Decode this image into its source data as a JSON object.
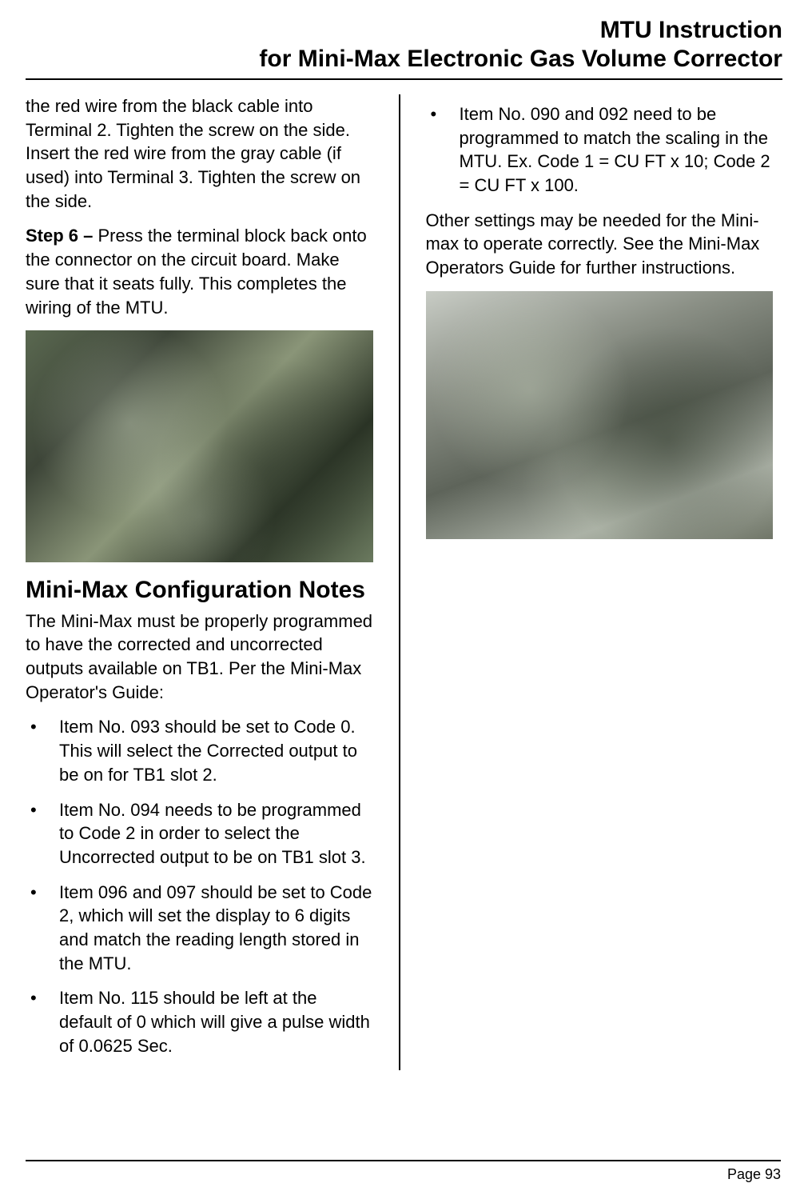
{
  "header": {
    "line1": "MTU Instruction",
    "line2": "for Mini-Max Electronic Gas Volume Corrector"
  },
  "left": {
    "para1": "the red wire from the black cable into Terminal 2. Tighten the screw on the side. Insert the red wire from the gray cable (if used) into Terminal 3. Tighten the screw on the side.",
    "step6_label": "Step 6 – ",
    "step6_text": "Press the terminal block back onto the connector on the circuit board. Make sure     that it seats fully. This completes the wiring of the MTU.",
    "heading": "Mini-Max Configuration Notes",
    "para2": "The Mini-Max must be properly programmed to have the corrected and uncorrected outputs available on TB1. Per the Mini-Max Operator's Guide:",
    "bullets": [
      "Item No. 093 should be set to Code 0. This will select the Corrected output to be on for TB1 slot 2.",
      "Item No. 094 needs to be programmed to Code 2 in order to select the Uncorrected output to be on TB1 slot 3.",
      "Item 096 and 097 should be set to Code 2, which will set the display to 6 digits and match the reading length stored in the MTU.",
      "Item No. 115 should be left at the default of 0 which will give a pulse width of 0.0625 Sec."
    ]
  },
  "right": {
    "bullet1": "Item No. 090  and 092 need to be programmed  to match the scaling in the MTU.  Ex. Code 1 = CU FT x 10;  Code 2 = CU FT x 100.",
    "para1": "Other settings may be needed for the Mini-max to operate correctly. See the Mini-Max Operators Guide for further instructions."
  },
  "footer": {
    "page": "Page 93"
  }
}
